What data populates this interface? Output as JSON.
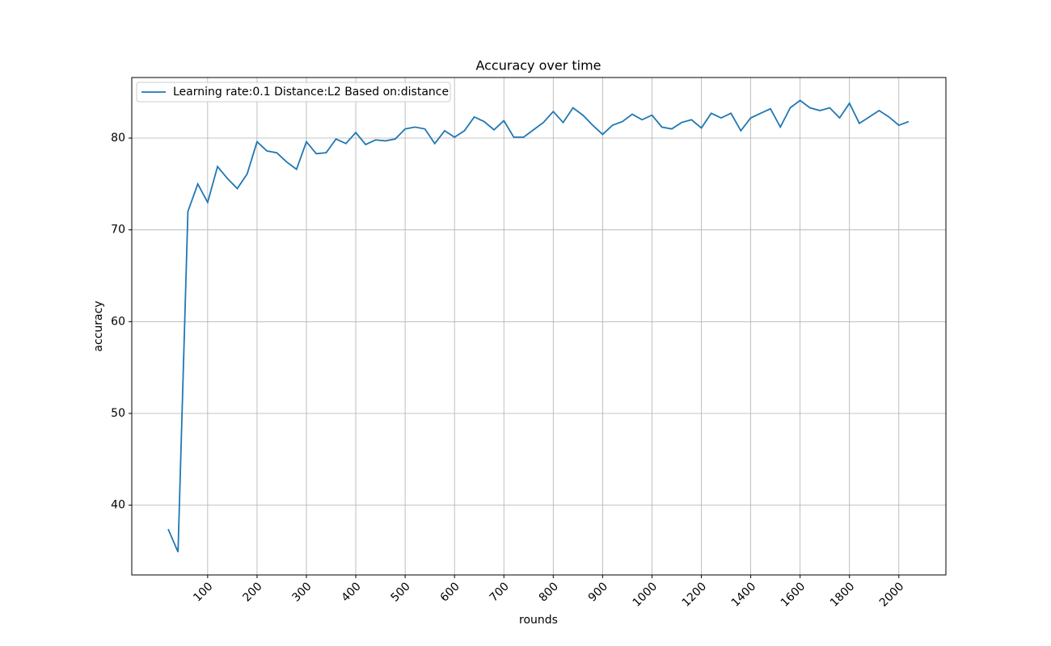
{
  "chart_data": {
    "type": "line",
    "title": "Accuracy over time",
    "xlabel": "rounds",
    "ylabel": "accuracy",
    "categories": [
      null,
      null,
      null,
      null,
      "100",
      null,
      null,
      null,
      null,
      "200",
      null,
      null,
      null,
      null,
      "300",
      null,
      null,
      null,
      null,
      "400",
      null,
      null,
      null,
      null,
      "500",
      null,
      null,
      null,
      null,
      "600",
      null,
      null,
      null,
      null,
      "700",
      null,
      null,
      null,
      null,
      "800",
      null,
      null,
      null,
      null,
      "900",
      null,
      null,
      null,
      null,
      "1000",
      null,
      null,
      null,
      null,
      "1200",
      null,
      null,
      null,
      null,
      "1400",
      null,
      null,
      null,
      null,
      "1600",
      null,
      null,
      null,
      null,
      "1800",
      null,
      null,
      null,
      null,
      "2000",
      null
    ],
    "series": [
      {
        "name": "Learning rate:0.1 Distance:L2 Based on:distance",
        "color": "#1f77b4",
        "values": [
          37.4,
          34.9,
          72.0,
          75.0,
          73.0,
          76.9,
          75.6,
          74.5,
          76.1,
          79.6,
          78.6,
          78.4,
          77.4,
          76.6,
          79.6,
          78.3,
          78.4,
          79.9,
          79.4,
          80.6,
          79.3,
          79.8,
          79.7,
          79.9,
          81.0,
          81.2,
          81.0,
          79.4,
          80.8,
          80.1,
          80.8,
          82.3,
          81.8,
          80.9,
          81.9,
          80.1,
          80.1,
          80.9,
          81.7,
          82.9,
          81.7,
          83.3,
          82.5,
          81.4,
          80.4,
          81.4,
          81.8,
          82.6,
          82.0,
          82.5,
          81.2,
          81.0,
          81.7,
          82.0,
          81.1,
          82.7,
          82.2,
          82.7,
          80.8,
          82.2,
          82.7,
          83.2,
          81.2,
          83.3,
          84.1,
          83.3,
          83.0,
          83.3,
          82.2,
          83.8,
          81.6,
          82.3,
          83.0,
          82.3,
          81.4,
          81.8
        ]
      }
    ],
    "ylim": [
      32.4,
      86.6
    ],
    "yticks": [
      40,
      50,
      60,
      70,
      80
    ],
    "grid": true,
    "legend": "upper left"
  }
}
